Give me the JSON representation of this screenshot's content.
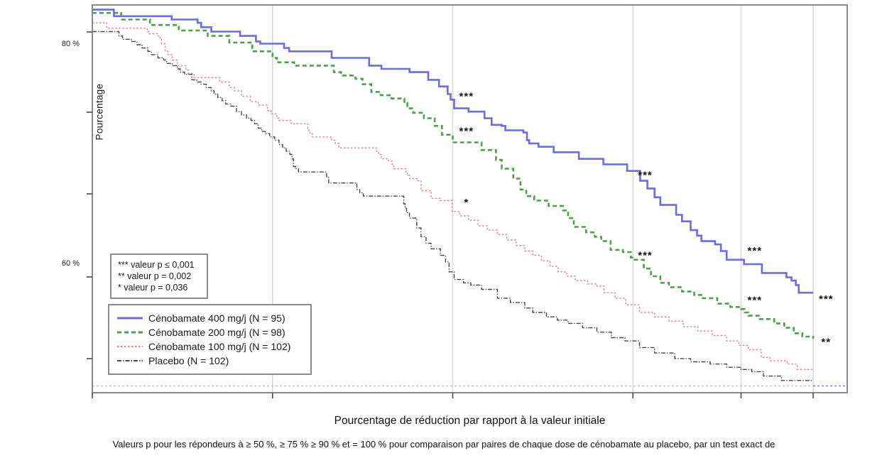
{
  "y_axis_label": "Pourcentage",
  "y_tick_labels": [
    {
      "label": "80 %",
      "value": 80
    },
    {
      "label": "60 %",
      "value": 60
    }
  ],
  "pvalue_key": {
    "line1": "*** valeur p ≤ 0,001",
    "line2": "** valeur p = 0,002",
    "line3": "* valeur p = 0,036"
  },
  "legend": [
    {
      "label": "Cénobamate 400 mg/j (N = 95)",
      "color": "#6c6ce6",
      "style": "solid"
    },
    {
      "label": "Cénobamate 200 mg/j (N = 98)",
      "color": "#4da14d",
      "style": "dashed"
    },
    {
      "label": "Cénobamate 100 mg/j (N = 102)",
      "color": "#e78080",
      "style": "dotted"
    },
    {
      "label": "Placebo (N = 102)",
      "color": "#474747",
      "style": "dashdot"
    }
  ],
  "x_axis_title": "Pourcentage de réduction par rapport à la valeur initiale",
  "footnote": "Valeurs p pour les répondeurs à ≥ 50 %, ≥ 75 % ≥ 90 % et = 100 % pour comparaison par paires de chaque dose de cénobamate au placebo, par un test exact de",
  "chart_data": {
    "type": "line",
    "subtype": "step-responder-curve",
    "xlabel": "Pourcentage de réduction par rapport à la valeur initiale",
    "ylabel": "Pourcentage",
    "xlim": [
      0,
      104.7
    ],
    "ylim": [
      48.3,
      83.6
    ],
    "grid": "vertical-only",
    "x_gridlines": [
      25,
      50,
      75,
      90,
      100
    ],
    "x_ticks": [
      0,
      25,
      50,
      75,
      90,
      100
    ],
    "y_ticks_labeled": [
      80,
      60
    ],
    "baseline_dashed_y": 48.9,
    "colors": {
      "cenobamate_400": "#6c6ce6",
      "cenobamate_200": "#4da14d",
      "cenobamate_100": "#e78080",
      "placebo": "#474747",
      "gridline": "#d9d9d9",
      "border": "#8a8a8a",
      "annotation": "#111111"
    },
    "series": [
      {
        "name": "Cénobamate 400 mg/j (N = 95)",
        "key": "cenobamate-400",
        "style": "solid",
        "color": "#6c6ce6",
        "width": 2.6,
        "points": [
          [
            0,
            83.2
          ],
          [
            3,
            82.6
          ],
          [
            11,
            82.3
          ],
          [
            14.6,
            82.0
          ],
          [
            15.1,
            81.6
          ],
          [
            16.5,
            81.2
          ],
          [
            20.5,
            80.8
          ],
          [
            22.7,
            80.3
          ],
          [
            23.3,
            80.1
          ],
          [
            26.6,
            79.7
          ],
          [
            27.3,
            79.4
          ],
          [
            33.2,
            78.8
          ],
          [
            38.4,
            78.1
          ],
          [
            40.1,
            77.8
          ],
          [
            44,
            77.5
          ],
          [
            46.6,
            76.8
          ],
          [
            48.1,
            76.2
          ],
          [
            49.3,
            75.5
          ],
          [
            49.7,
            75.0
          ],
          [
            50.2,
            74.2
          ],
          [
            52.2,
            73.9
          ],
          [
            54.4,
            73.3
          ],
          [
            55.4,
            72.7
          ],
          [
            56.8,
            72.6
          ],
          [
            57.3,
            72.2
          ],
          [
            59.8,
            72.0
          ],
          [
            60.3,
            71.3
          ],
          [
            60.6,
            71.0
          ],
          [
            61.9,
            70.7
          ],
          [
            64,
            70.2
          ],
          [
            67.5,
            69.6
          ],
          [
            70.9,
            69.1
          ],
          [
            74.2,
            68.5
          ],
          [
            76,
            67.6
          ],
          [
            77,
            66.9
          ],
          [
            78,
            66.1
          ],
          [
            78.8,
            65.4
          ],
          [
            81,
            64.5
          ],
          [
            81.8,
            63.9
          ],
          [
            83,
            63.1
          ],
          [
            83.9,
            62.6
          ],
          [
            84.5,
            62.1
          ],
          [
            86.4,
            61.8
          ],
          [
            87.2,
            61.2
          ],
          [
            88,
            60.4
          ],
          [
            90.4,
            60.0
          ],
          [
            92.9,
            59.2
          ],
          [
            96.3,
            58.8
          ],
          [
            97,
            58.5
          ],
          [
            97.6,
            58.1
          ],
          [
            98,
            57.4
          ],
          [
            100,
            57.4
          ]
        ]
      },
      {
        "name": "Cénobamate 200 mg/j (N = 98)",
        "key": "cenobamate-200",
        "style": "dashed",
        "color": "#4da14d",
        "width": 2.6,
        "points": [
          [
            0,
            82.9
          ],
          [
            4,
            82.3
          ],
          [
            8,
            81.8
          ],
          [
            12,
            81.3
          ],
          [
            16,
            80.8
          ],
          [
            19,
            80.2
          ],
          [
            22.2,
            79.4
          ],
          [
            25,
            78.8
          ],
          [
            25.6,
            78.4
          ],
          [
            28,
            78.1
          ],
          [
            33.5,
            77.5
          ],
          [
            34.5,
            77.2
          ],
          [
            36.5,
            76.9
          ],
          [
            37.5,
            76.4
          ],
          [
            38.7,
            75.7
          ],
          [
            40,
            75.4
          ],
          [
            41.5,
            75.1
          ],
          [
            43.3,
            74.7
          ],
          [
            43.7,
            74.2
          ],
          [
            44.5,
            73.8
          ],
          [
            46,
            73.3
          ],
          [
            47.5,
            72.6
          ],
          [
            48.5,
            71.8
          ],
          [
            50,
            71.1
          ],
          [
            54,
            70.4
          ],
          [
            56,
            69.5
          ],
          [
            56.8,
            68.7
          ],
          [
            58.4,
            67.8
          ],
          [
            59.4,
            66.8
          ],
          [
            60.2,
            66.2
          ],
          [
            61.3,
            65.8
          ],
          [
            63.3,
            65.3
          ],
          [
            65.3,
            64.9
          ],
          [
            66,
            64.2
          ],
          [
            66.8,
            63.4
          ],
          [
            68.5,
            62.9
          ],
          [
            69.7,
            62.5
          ],
          [
            70.6,
            62.1
          ],
          [
            71.9,
            61.3
          ],
          [
            73.6,
            61.1
          ],
          [
            74.7,
            60.6
          ],
          [
            75.1,
            60.4
          ],
          [
            76.5,
            59.6
          ],
          [
            77.5,
            58.9
          ],
          [
            78.8,
            58.3
          ],
          [
            80,
            57.9
          ],
          [
            81.8,
            57.5
          ],
          [
            83.5,
            57.2
          ],
          [
            84.7,
            56.9
          ],
          [
            86.7,
            56.4
          ],
          [
            88.5,
            56.1
          ],
          [
            90,
            55.9
          ],
          [
            90.5,
            55.6
          ],
          [
            91,
            55.3
          ],
          [
            92.6,
            55.0
          ],
          [
            94.6,
            54.6
          ],
          [
            96,
            54.2
          ],
          [
            97.3,
            53.7
          ],
          [
            98.5,
            53.4
          ],
          [
            100,
            53.2
          ]
        ]
      },
      {
        "name": "Cénobamate 100 mg/j (N = 102)",
        "key": "cenobamate-100",
        "style": "dotted",
        "color": "#e78080",
        "width": 1.4,
        "points": [
          [
            0,
            82.0
          ],
          [
            2,
            81.5
          ],
          [
            7.6,
            81.2
          ],
          [
            7.9,
            81.0
          ],
          [
            9.1,
            80.8
          ],
          [
            9.4,
            80.5
          ],
          [
            9.6,
            80.1
          ],
          [
            10.1,
            79.4
          ],
          [
            10.5,
            79.1
          ],
          [
            11.1,
            78.6
          ],
          [
            11.8,
            78.1
          ],
          [
            13,
            77.7
          ],
          [
            13.3,
            77.4
          ],
          [
            14.1,
            77.0
          ],
          [
            17.7,
            76.6
          ],
          [
            19,
            76.1
          ],
          [
            19.7,
            75.8
          ],
          [
            20.7,
            75.3
          ],
          [
            21.9,
            74.8
          ],
          [
            23,
            74.5
          ],
          [
            24.3,
            74.0
          ],
          [
            24.8,
            73.7
          ],
          [
            25.6,
            73.3
          ],
          [
            25.9,
            73.1
          ],
          [
            27.6,
            72.8
          ],
          [
            29.9,
            72.2
          ],
          [
            30.2,
            71.9
          ],
          [
            30.5,
            71.6
          ],
          [
            33.2,
            71.3
          ],
          [
            33.7,
            71.0
          ],
          [
            34.2,
            70.6
          ],
          [
            39.4,
            70.3
          ],
          [
            39.7,
            70.0
          ],
          [
            40.1,
            69.6
          ],
          [
            41.1,
            69.4
          ],
          [
            41.6,
            69.1
          ],
          [
            41.8,
            68.7
          ],
          [
            43.5,
            68.4
          ],
          [
            43.7,
            68.1
          ],
          [
            44,
            67.8
          ],
          [
            45,
            67.6
          ],
          [
            45.6,
            66.7
          ],
          [
            47,
            66.0
          ],
          [
            48.3,
            65.8
          ],
          [
            49.9,
            64.8
          ],
          [
            51,
            64.4
          ],
          [
            52.2,
            64.0
          ],
          [
            53.5,
            63.5
          ],
          [
            54.8,
            63.1
          ],
          [
            56.2,
            62.7
          ],
          [
            57.5,
            62.2
          ],
          [
            58.8,
            61.7
          ],
          [
            60,
            61.2
          ],
          [
            61.1,
            60.8
          ],
          [
            62.3,
            60.3
          ],
          [
            63.5,
            59.8
          ],
          [
            64.6,
            59.3
          ],
          [
            65.8,
            58.9
          ],
          [
            67,
            58.5
          ],
          [
            68.7,
            58.2
          ],
          [
            70,
            58.0
          ],
          [
            71,
            57.4
          ],
          [
            72.5,
            56.9
          ],
          [
            74,
            56.3
          ],
          [
            75.9,
            55.6
          ],
          [
            78,
            55.2
          ],
          [
            80,
            54.8
          ],
          [
            82,
            54.3
          ],
          [
            84,
            53.9
          ],
          [
            86,
            53.5
          ],
          [
            88,
            53.0
          ],
          [
            89.7,
            52.6
          ],
          [
            91,
            52.2
          ],
          [
            92.8,
            51.5
          ],
          [
            94,
            51.2
          ],
          [
            96.4,
            50.9
          ],
          [
            97.8,
            50.4
          ],
          [
            100,
            50.3
          ]
        ]
      },
      {
        "name": "Placebo (N = 102)",
        "key": "placebo",
        "style": "dashdot",
        "color": "#474747",
        "width": 1.4,
        "points": [
          [
            0,
            81.2
          ],
          [
            3.7,
            80.8
          ],
          [
            4.2,
            80.5
          ],
          [
            5.4,
            80.3
          ],
          [
            6.2,
            80.0
          ],
          [
            6.9,
            79.7
          ],
          [
            7.7,
            79.4
          ],
          [
            8.2,
            79.1
          ],
          [
            9.1,
            78.8
          ],
          [
            9.9,
            78.6
          ],
          [
            10.3,
            78.3
          ],
          [
            11.1,
            78.1
          ],
          [
            11.8,
            77.8
          ],
          [
            12.2,
            77.5
          ],
          [
            12.8,
            77.3
          ],
          [
            13.8,
            76.8
          ],
          [
            14.5,
            76.6
          ],
          [
            15.1,
            76.4
          ],
          [
            15.8,
            76.1
          ],
          [
            16.5,
            75.8
          ],
          [
            16.9,
            75.5
          ],
          [
            17.4,
            75.2
          ],
          [
            18,
            74.9
          ],
          [
            18.5,
            74.6
          ],
          [
            19.2,
            74.4
          ],
          [
            20,
            73.9
          ],
          [
            20.7,
            73.6
          ],
          [
            21.4,
            73.3
          ],
          [
            22,
            73.1
          ],
          [
            22.5,
            72.8
          ],
          [
            23,
            72.4
          ],
          [
            23.5,
            72.1
          ],
          [
            24,
            71.9
          ],
          [
            24.6,
            71.6
          ],
          [
            25.3,
            71.3
          ],
          [
            25.9,
            70.9
          ],
          [
            26.4,
            70.6
          ],
          [
            26.9,
            70.3
          ],
          [
            27.4,
            70.0
          ],
          [
            27.7,
            69.6
          ],
          [
            27.9,
            68.9
          ],
          [
            28.2,
            68.7
          ],
          [
            28.6,
            68.4
          ],
          [
            32.5,
            67.9
          ],
          [
            32.8,
            67.4
          ],
          [
            36.7,
            66.8
          ],
          [
            37.1,
            66.5
          ],
          [
            37.6,
            66.2
          ],
          [
            43.2,
            65.5
          ],
          [
            43.4,
            65.1
          ],
          [
            43.6,
            64.7
          ],
          [
            44,
            64.2
          ],
          [
            45,
            63.3
          ],
          [
            45.6,
            62.5
          ],
          [
            46.3,
            61.9
          ],
          [
            47,
            61.4
          ],
          [
            48.3,
            60.8
          ],
          [
            49,
            60.2
          ],
          [
            49.5,
            59.3
          ],
          [
            50.2,
            58.6
          ],
          [
            51.5,
            58.3
          ],
          [
            52.5,
            58.1
          ],
          [
            54,
            57.7
          ],
          [
            56.2,
            56.9
          ],
          [
            58,
            56.5
          ],
          [
            60,
            56.0
          ],
          [
            61.1,
            55.6
          ],
          [
            63,
            55.2
          ],
          [
            64.5,
            54.9
          ],
          [
            66,
            54.6
          ],
          [
            68,
            54.2
          ],
          [
            70,
            53.8
          ],
          [
            72,
            53.3
          ],
          [
            73.9,
            53.0
          ],
          [
            75.9,
            52.4
          ],
          [
            78,
            51.9
          ],
          [
            80.8,
            51.4
          ],
          [
            83,
            51.1
          ],
          [
            85.7,
            50.9
          ],
          [
            88,
            50.6
          ],
          [
            90,
            50.4
          ],
          [
            91.5,
            50.2
          ],
          [
            93.1,
            49.8
          ],
          [
            95.6,
            49.4
          ],
          [
            100,
            49.4
          ]
        ]
      }
    ],
    "annotations": [
      {
        "x": 51.9,
        "y": 75.0,
        "text": "***"
      },
      {
        "x": 51.9,
        "y": 71.8,
        "text": "***"
      },
      {
        "x": 51.9,
        "y": 65.3,
        "text": "*"
      },
      {
        "x": 76.7,
        "y": 67.8,
        "text": "***"
      },
      {
        "x": 76.7,
        "y": 60.5,
        "text": "***"
      },
      {
        "x": 91.9,
        "y": 60.9,
        "text": "***"
      },
      {
        "x": 91.9,
        "y": 56.4,
        "text": "***"
      },
      {
        "x": 101.8,
        "y": 56.5,
        "text": "***"
      },
      {
        "x": 101.8,
        "y": 52.6,
        "text": "**"
      }
    ]
  }
}
